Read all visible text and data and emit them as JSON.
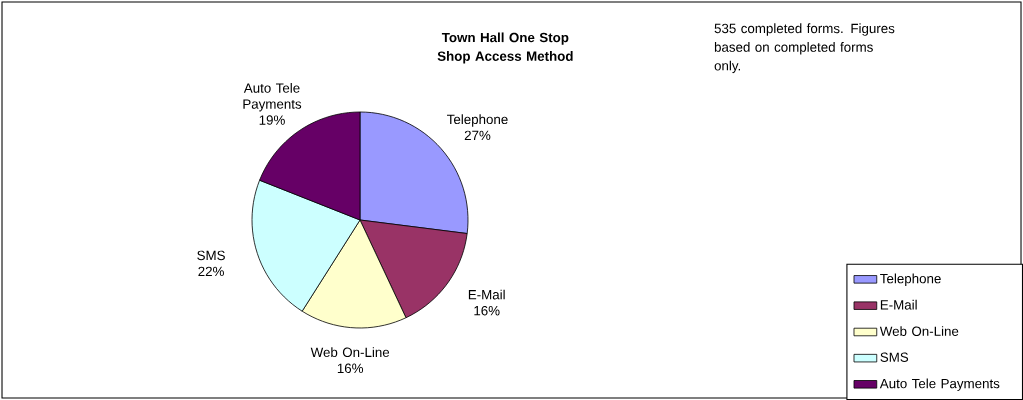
{
  "chart_data": {
    "type": "pie",
    "title": "Town Hall One Stop Shop Access Method",
    "categories": [
      "Telephone",
      "E-Mail",
      "Web On-Line",
      "SMS",
      "Auto Tele Payments"
    ],
    "values": [
      27,
      16,
      16,
      22,
      19
    ],
    "value_labels": [
      "27%",
      "16%",
      "16%",
      "22%",
      "19%"
    ],
    "colors": [
      "#9999ff",
      "#993366",
      "#ffffcc",
      "#ccffff",
      "#660066"
    ],
    "legend": "right",
    "annotations": [
      "535 completed forms. Figures based on completed forms only."
    ]
  }
}
